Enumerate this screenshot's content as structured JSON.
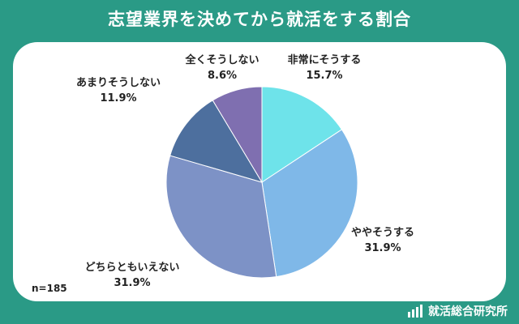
{
  "chart_data": {
    "type": "pie",
    "title": "志望業界を決めてから就活をする割合",
    "sample_size_label": "n=185",
    "slices": [
      {
        "label": "非常にそうする",
        "value": 15.7,
        "value_label": "15.7%",
        "color": "#6ee3ea"
      },
      {
        "label": "ややそうする",
        "value": 31.9,
        "value_label": "31.9%",
        "color": "#7fb8e8"
      },
      {
        "label": "どちらともいえない",
        "value": 31.9,
        "value_label": "31.9%",
        "color": "#7d92c6"
      },
      {
        "label": "あまりそうしない",
        "value": 11.9,
        "value_label": "11.9%",
        "color": "#4d6f9e"
      },
      {
        "label": "全くそうしない",
        "value": 8.6,
        "value_label": "8.6%",
        "color": "#7f6fb0"
      }
    ],
    "start": "12 o'clock",
    "direction": "clockwise"
  },
  "brand": {
    "name": "就活総合研究所",
    "icon": "bar-chart-icon"
  },
  "colors": {
    "background": "#2a9a86",
    "card": "#ffffff"
  }
}
